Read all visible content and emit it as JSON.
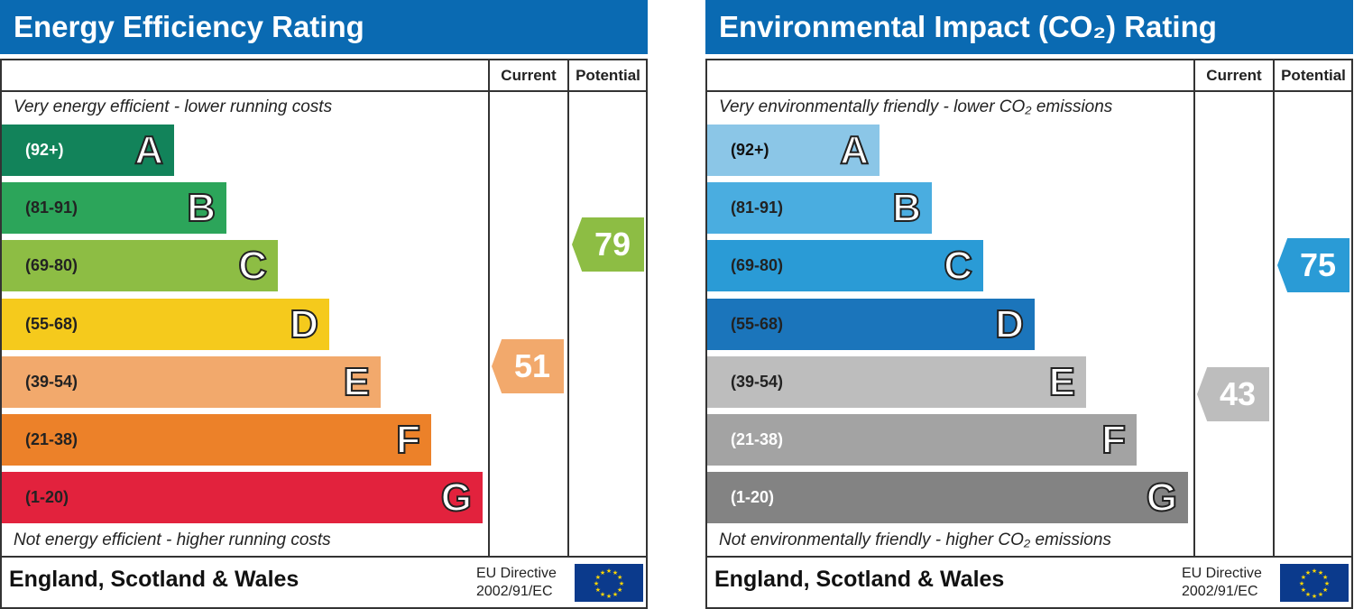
{
  "footer": {
    "region": "England, Scotland & Wales",
    "eu_line1": "EU Directive",
    "eu_line2": "2002/91/EC"
  },
  "chart_data": [
    {
      "type": "bar",
      "title": "Energy Efficiency Rating",
      "columns": [
        "Current",
        "Potential"
      ],
      "top_note": "Very energy efficient - lower running costs",
      "bottom_note": "Not energy efficient - higher running costs",
      "bands": [
        {
          "letter": "A",
          "range": "(92+)",
          "color": "#12835a",
          "text": "#ffffff"
        },
        {
          "letter": "B",
          "range": "(81-91)",
          "color": "#2ca55a",
          "text": "#222222"
        },
        {
          "letter": "C",
          "range": "(69-80)",
          "color": "#8dbd44",
          "text": "#222222"
        },
        {
          "letter": "D",
          "range": "(55-68)",
          "color": "#f5ca1c",
          "text": "#222222"
        },
        {
          "letter": "E",
          "range": "(39-54)",
          "color": "#f2a96c",
          "text": "#222222"
        },
        {
          "letter": "F",
          "range": "(21-38)",
          "color": "#ec8129",
          "text": "#222222"
        },
        {
          "letter": "G",
          "range": "(1-20)",
          "color": "#e2223d",
          "text": "#222222"
        }
      ],
      "current": {
        "value": "51",
        "band": "E"
      },
      "potential": {
        "value": "79",
        "band": "C"
      }
    },
    {
      "type": "bar",
      "title": "Environmental Impact (CO₂) Rating",
      "columns": [
        "Current",
        "Potential"
      ],
      "top_note": "Very environmentally friendly - lower CO₂ emissions",
      "bottom_note": "Not environmentally friendly - higher CO₂ emissions",
      "bands": [
        {
          "letter": "A",
          "range": "(92+)",
          "color": "#8bc6e7",
          "text": "#111111"
        },
        {
          "letter": "B",
          "range": "(81-91)",
          "color": "#4aade0",
          "text": "#222222"
        },
        {
          "letter": "C",
          "range": "(69-80)",
          "color": "#2a9bd6",
          "text": "#222222"
        },
        {
          "letter": "D",
          "range": "(55-68)",
          "color": "#1b75bb",
          "text": "#222222"
        },
        {
          "letter": "E",
          "range": "(39-54)",
          "color": "#bdbdbd",
          "text": "#222222"
        },
        {
          "letter": "F",
          "range": "(21-38)",
          "color": "#a3a3a3",
          "text": "#ffffff"
        },
        {
          "letter": "G",
          "range": "(1-20)",
          "color": "#838383",
          "text": "#ffffff"
        }
      ],
      "current": {
        "value": "43",
        "band": "E"
      },
      "potential": {
        "value": "75",
        "band": "C"
      }
    }
  ]
}
